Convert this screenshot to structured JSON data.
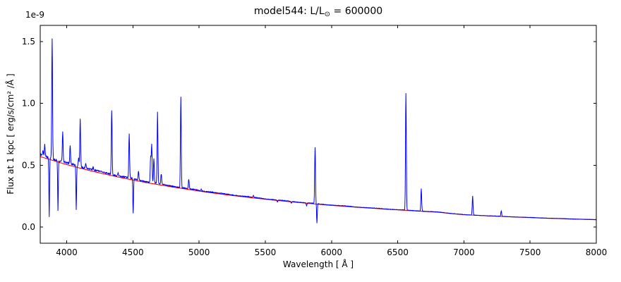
{
  "figure": {
    "title": {
      "prefix": "model544: L/L",
      "sub": "⊙",
      "suffix": " = 600000"
    },
    "offset_label": "1e-9",
    "xlabel": "Wavelength [ Å ]",
    "ylabel": "Flux at 1 kpc [ erg/s/cm² /Å ]"
  },
  "chart_data": {
    "type": "line",
    "title": "model544: L/L⊙ = 600000",
    "xlabel": "Wavelength [ Å ]",
    "ylabel": "Flux at 1 kpc [ erg/s/cm² /Å ]",
    "flux_scale": "1e-9",
    "xlim": [
      3800,
      8000
    ],
    "ylim": [
      -0.13,
      1.63
    ],
    "xtick_values": [
      4000,
      4500,
      5000,
      5500,
      6000,
      6500,
      7000,
      7500,
      8000
    ],
    "xtick_labels": [
      "4000",
      "4500",
      "5000",
      "5500",
      "6000",
      "6500",
      "7000",
      "7500",
      "8000"
    ],
    "ytick_values": [
      0.0,
      0.5,
      1.0,
      1.5
    ],
    "ytick_labels": [
      "0.0",
      "0.5",
      "1.0",
      "1.5"
    ],
    "grid": false,
    "legend": "none",
    "series": [
      {
        "name": "spectrum",
        "color": "#0000ff"
      },
      {
        "name": "continuum-fit",
        "color": "#ff0000"
      }
    ],
    "continuum_points": [
      [
        3800,
        0.57
      ],
      [
        4000,
        0.505
      ],
      [
        4200,
        0.45
      ],
      [
        4400,
        0.402
      ],
      [
        4600,
        0.36
      ],
      [
        4800,
        0.324
      ],
      [
        5000,
        0.291
      ],
      [
        5200,
        0.262
      ],
      [
        5400,
        0.237
      ],
      [
        5600,
        0.214
      ],
      [
        5800,
        0.194
      ],
      [
        6000,
        0.176
      ],
      [
        6200,
        0.16
      ],
      [
        6400,
        0.146
      ],
      [
        6600,
        0.133
      ],
      [
        6800,
        0.121
      ],
      [
        7000,
        0.1
      ],
      [
        7200,
        0.09
      ],
      [
        7400,
        0.081
      ],
      [
        7600,
        0.073
      ],
      [
        7800,
        0.066
      ],
      [
        8000,
        0.06
      ]
    ],
    "emission_lines": [
      [
        3820,
        0.6
      ],
      [
        3834,
        0.65
      ],
      [
        3890,
        1.51
      ],
      [
        3970,
        0.75
      ],
      [
        4026,
        0.64
      ],
      [
        4090,
        0.55
      ],
      [
        4102,
        0.86
      ],
      [
        4144,
        0.5
      ],
      [
        4200,
        0.47
      ],
      [
        4340,
        0.93
      ],
      [
        4388,
        0.43
      ],
      [
        4472,
        0.74
      ],
      [
        4542,
        0.44
      ],
      [
        4634,
        0.56
      ],
      [
        4642,
        0.66
      ],
      [
        4658,
        0.55
      ],
      [
        4686,
        0.92
      ],
      [
        4714,
        0.42
      ],
      [
        4862,
        1.05
      ],
      [
        4922,
        0.38
      ],
      [
        5016,
        0.3
      ],
      [
        5410,
        0.25
      ],
      [
        5592,
        0.2
      ],
      [
        5696,
        0.19
      ],
      [
        5812,
        0.17
      ],
      [
        5876,
        0.64
      ],
      [
        6562,
        1.08
      ],
      [
        6678,
        0.31
      ],
      [
        7066,
        0.25
      ],
      [
        7282,
        0.13
      ]
    ],
    "absorption_lines": [
      [
        3868,
        0.07
      ],
      [
        3934,
        0.12
      ],
      [
        4072,
        0.12
      ],
      [
        4502,
        0.1
      ],
      [
        5890,
        0.03
      ]
    ],
    "line_sigma_angstrom": 3.0
  }
}
